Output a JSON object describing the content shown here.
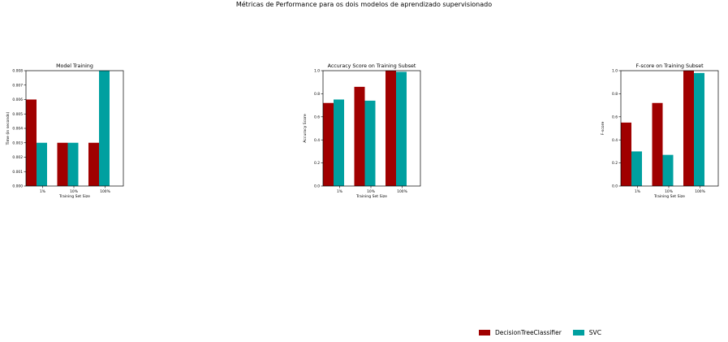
{
  "figure": {
    "suptitle": "Métricas de Performance para os dois modelos de aprendizado supervisionado"
  },
  "legend": {
    "items": [
      {
        "label": "DecisionTreeClassifier",
        "color": "#a00000"
      },
      {
        "label": "SVC",
        "color": "#00a0a0"
      }
    ]
  },
  "chart_data": [
    {
      "type": "bar",
      "title": "Model Training",
      "xlabel": "Training Set Size",
      "ylabel": "Time (in seconds)",
      "categories": [
        "1%",
        "10%",
        "100%"
      ],
      "ylim": [
        0,
        0.008
      ],
      "yticks": [
        "0.000",
        "0.001",
        "0.002",
        "0.003",
        "0.004",
        "0.005",
        "0.006",
        "0.007",
        "0.008"
      ],
      "series": [
        {
          "name": "DecisionTreeClassifier",
          "color": "#a00000",
          "values": [
            0.006,
            0.003,
            0.003
          ]
        },
        {
          "name": "SVC",
          "color": "#00a0a0",
          "values": [
            0.003,
            0.003,
            0.008
          ]
        }
      ]
    },
    {
      "type": "bar",
      "title": "Accuracy Score on Training Subset",
      "xlabel": "Training Set Size",
      "ylabel": "Accuracy Score",
      "categories": [
        "1%",
        "10%",
        "100%"
      ],
      "ylim": [
        0,
        1.0
      ],
      "yticks": [
        "0.0",
        "0.2",
        "0.4",
        "0.6",
        "0.8",
        "1.0"
      ],
      "series": [
        {
          "name": "DecisionTreeClassifier",
          "color": "#a00000",
          "values": [
            0.72,
            0.86,
            1.0
          ]
        },
        {
          "name": "SVC",
          "color": "#00a0a0",
          "values": [
            0.75,
            0.74,
            0.99
          ]
        }
      ]
    },
    {
      "type": "bar",
      "title": "F-score on Training Subset",
      "xlabel": "Training Set Size",
      "ylabel": "F-score",
      "categories": [
        "1%",
        "10%",
        "100%"
      ],
      "ylim": [
        0,
        1.0
      ],
      "yticks": [
        "0.0",
        "0.2",
        "0.4",
        "0.6",
        "0.8",
        "1.0"
      ],
      "series": [
        {
          "name": "DecisionTreeClassifier",
          "color": "#a00000",
          "values": [
            0.55,
            0.72,
            1.0
          ]
        },
        {
          "name": "SVC",
          "color": "#00a0a0",
          "values": [
            0.3,
            0.27,
            0.98
          ]
        }
      ]
    }
  ]
}
